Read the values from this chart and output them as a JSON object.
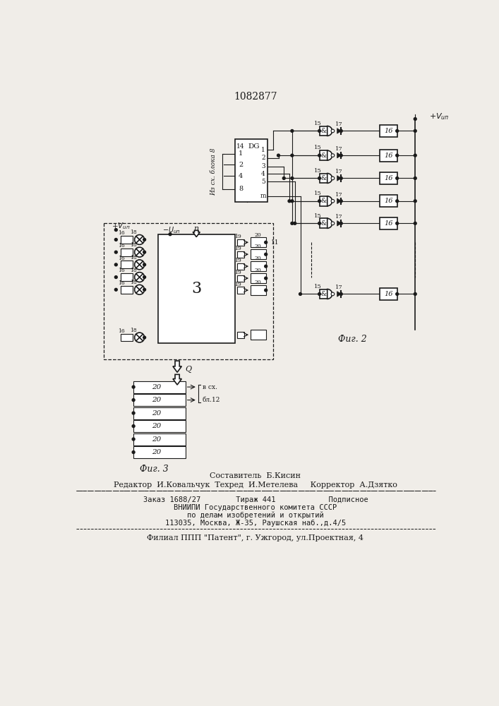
{
  "title": "1082877",
  "bg_color": "#f0ede8",
  "line_color": "#1a1a1a",
  "fig2_label": "Фиг. 2",
  "fig3_label": "Фиг. 3",
  "footer_line1": "Составитель  Б.Кисин",
  "footer_line2": "Редактор  И.Ковальчук  Техред  И.Метелева     Корректор  А.Дзятко",
  "footer_line3": "Заказ 1688/27        Тираж 441            Подписное",
  "footer_line4": "ВНИИПИ Государственного комитета СССР",
  "footer_line5": "по делам изобретений и открытий",
  "footer_line6": "113035, Москва, Ж-35, Раушская наб.,д.4/5",
  "footer_line7": "Филиал ППП \"Патент\", г. Ужгород, ул.Проектная, 4"
}
